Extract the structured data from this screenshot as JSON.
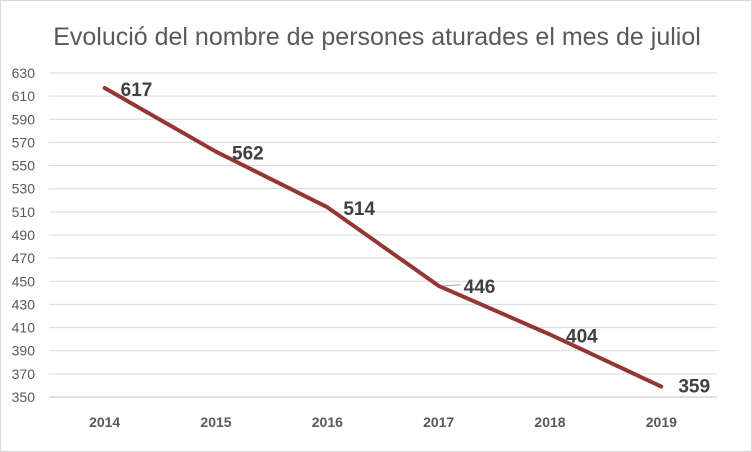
{
  "chart_data": {
    "type": "line",
    "title": "Evolució del nombre de persones aturades el mes de juliol",
    "categories": [
      "2014",
      "2015",
      "2016",
      "2017",
      "2018",
      "2019"
    ],
    "series": [
      {
        "values": [
          617,
          562,
          514,
          446,
          404,
          359
        ],
        "color": "#943634"
      }
    ],
    "data_labels": [
      "617",
      "562",
      "514",
      "446",
      "404",
      "359"
    ],
    "ylim": [
      350,
      630
    ],
    "yticks": [
      350,
      370,
      390,
      410,
      430,
      450,
      470,
      490,
      510,
      530,
      550,
      570,
      590,
      610,
      630
    ],
    "grid": true,
    "legend": "none"
  }
}
